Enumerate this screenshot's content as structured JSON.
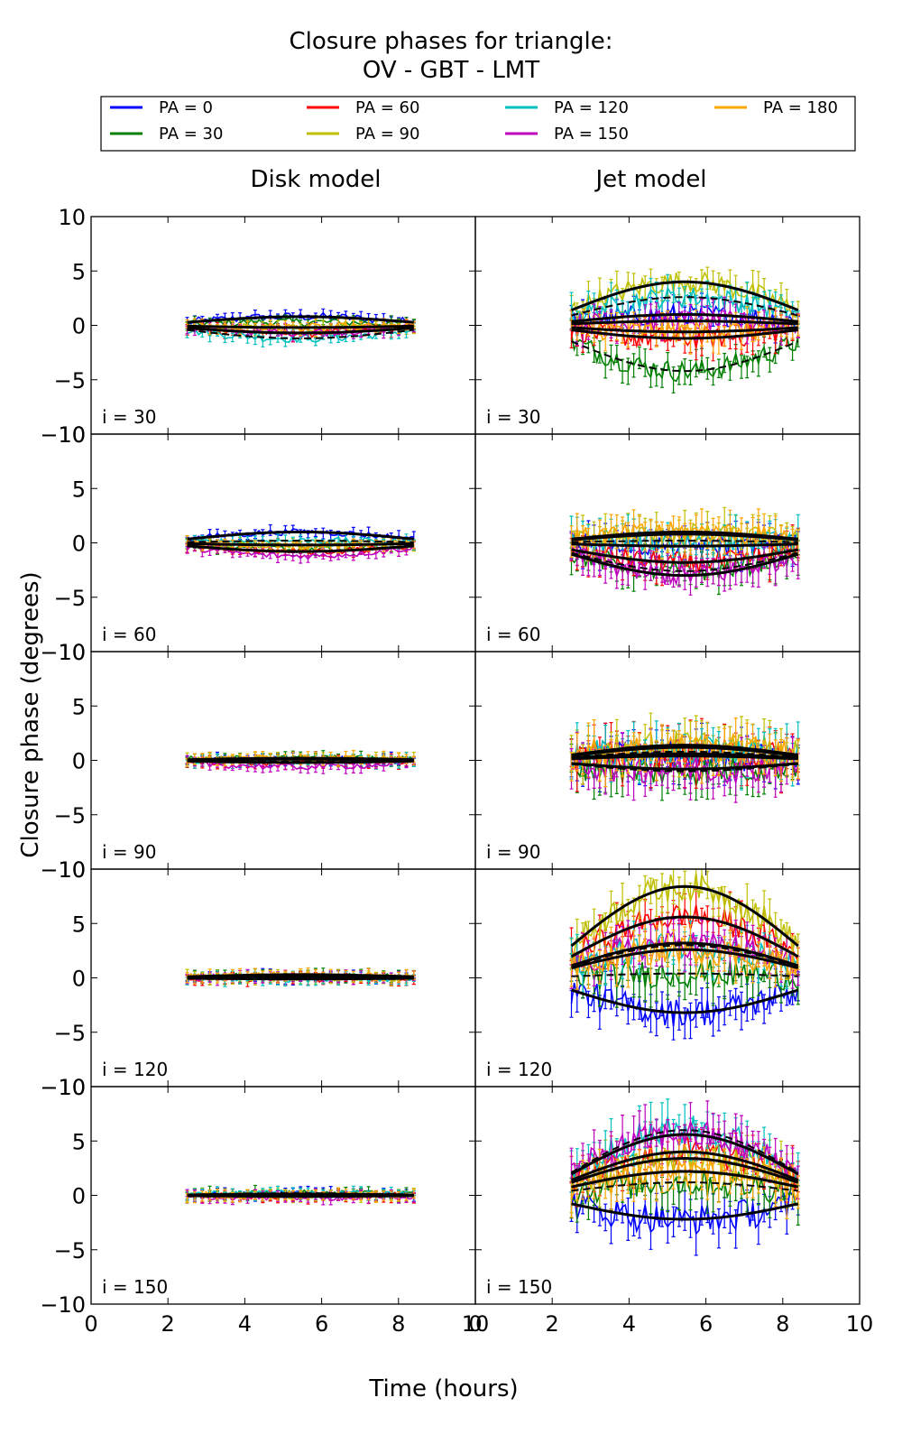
{
  "chart_data": {
    "type": "line",
    "title_line1": "Closure phases for triangle:",
    "title_line2": "OV - GBT - LMT",
    "xlabel": "Time (hours)",
    "ylabel": "Closure phase (degrees)",
    "xlim": [
      0,
      10
    ],
    "ylim": [
      -10,
      10
    ],
    "x_ticks": [
      "0",
      "2",
      "4",
      "6",
      "8",
      "10"
    ],
    "y_ticks": [
      "10",
      "5",
      "0",
      "−5",
      "−10"
    ],
    "grid": false,
    "legend_position": "top",
    "column_titles": [
      "Disk model",
      "Jet model"
    ],
    "row_labels": [
      "i = 30",
      "i = 60",
      "i = 90",
      "i = 120",
      "i = 150"
    ],
    "series": [
      {
        "name": "PA = 0",
        "color": "#0000ff"
      },
      {
        "name": "PA = 30",
        "color": "#008000"
      },
      {
        "name": "PA = 60",
        "color": "#ff0000"
      },
      {
        "name": "PA = 90",
        "color": "#bfbf00"
      },
      {
        "name": "PA = 120",
        "color": "#00bfbf"
      },
      {
        "name": "PA = 150",
        "color": "#bf00bf"
      },
      {
        "name": "PA = 180",
        "color": "#ffa500"
      }
    ],
    "x_range_data": [
      2.5,
      8.4
    ],
    "panels": [
      {
        "row": 0,
        "col": 0,
        "offsets": [
          0.8,
          0.3,
          -0.7,
          -0.3,
          -1.2,
          -0.6,
          -0.2
        ],
        "noise": 0.4,
        "err": 0.5
      },
      {
        "row": 0,
        "col": 1,
        "offsets": [
          1.0,
          -4.2,
          -1.2,
          4.0,
          2.6,
          0.4,
          -0.6
        ],
        "noise": 1.0,
        "err": 1.3
      },
      {
        "row": 1,
        "col": 0,
        "offsets": [
          1.0,
          -0.6,
          -0.8,
          -0.3,
          0.2,
          -1.2,
          -0.2
        ],
        "noise": 0.3,
        "err": 0.5
      },
      {
        "row": 1,
        "col": 1,
        "offsets": [
          -0.3,
          -2.6,
          -1.8,
          0.8,
          0.2,
          -3.0,
          1.0
        ],
        "noise": 1.0,
        "err": 1.6
      },
      {
        "row": 2,
        "col": 0,
        "offsets": [
          0.1,
          0.2,
          -0.2,
          0.1,
          -0.1,
          -0.6,
          0.2
        ],
        "noise": 0.3,
        "err": 0.5
      },
      {
        "row": 2,
        "col": 1,
        "offsets": [
          0.4,
          -1.0,
          0.6,
          1.4,
          0.8,
          -0.8,
          1.2
        ],
        "noise": 1.4,
        "err": 2.0
      },
      {
        "row": 3,
        "col": 0,
        "offsets": [
          0.1,
          0.2,
          -0.1,
          0.0,
          -0.1,
          0.1,
          0.3
        ],
        "noise": 0.3,
        "err": 0.5
      },
      {
        "row": 3,
        "col": 1,
        "offsets": [
          -3.2,
          0.4,
          5.6,
          8.4,
          3.0,
          3.2,
          2.6
        ],
        "noise": 1.3,
        "err": 1.8
      },
      {
        "row": 4,
        "col": 0,
        "offsets": [
          0.1,
          0.2,
          -0.1,
          0.0,
          0.2,
          -0.2,
          0.1
        ],
        "noise": 0.3,
        "err": 0.5
      },
      {
        "row": 4,
        "col": 1,
        "offsets": [
          -2.2,
          1.2,
          4.0,
          3.4,
          6.0,
          5.6,
          2.2
        ],
        "noise": 1.4,
        "err": 2.0
      }
    ]
  }
}
